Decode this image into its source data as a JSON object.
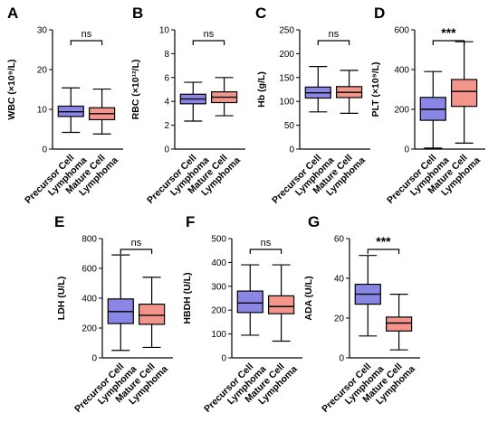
{
  "colors": {
    "precursor": "#8a86e6",
    "mature": "#f2958a",
    "stroke": "#000000"
  },
  "chart_data": [
    {
      "letter": "A",
      "type": "boxplot",
      "ylabel": "WBC (×10⁹/L)",
      "ylim": [
        0,
        30
      ],
      "yticks": [
        0,
        10,
        20,
        30
      ],
      "categories": [
        "Precursor Cell Lymphoma",
        "Mature Cell Lymphoma"
      ],
      "boxes": [
        {
          "min": 4.2,
          "q1": 8.2,
          "median": 9.4,
          "q3": 10.8,
          "max": 15.4
        },
        {
          "min": 3.8,
          "q1": 7.4,
          "median": 8.9,
          "q3": 10.4,
          "max": 15.1
        }
      ],
      "significance": "ns"
    },
    {
      "letter": "B",
      "type": "boxplot",
      "ylabel": "RBC (×10¹²/L)",
      "ylim": [
        0,
        10
      ],
      "yticks": [
        0,
        2,
        4,
        6,
        8,
        10
      ],
      "categories": [
        "Precursor Cell Lymphoma",
        "Mature Cell Lymphoma"
      ],
      "boxes": [
        {
          "min": 2.35,
          "q1": 3.8,
          "median": 4.2,
          "q3": 4.6,
          "max": 5.6
        },
        {
          "min": 2.8,
          "q1": 3.9,
          "median": 4.35,
          "q3": 4.8,
          "max": 6.0
        }
      ],
      "significance": "ns"
    },
    {
      "letter": "C",
      "type": "boxplot",
      "ylabel": "Hb (g/L)",
      "ylim": [
        0,
        250
      ],
      "yticks": [
        0,
        50,
        100,
        150,
        200,
        250
      ],
      "categories": [
        "Precursor Cell Lymphoma",
        "Mature Cell Lymphoma"
      ],
      "boxes": [
        {
          "min": 78,
          "q1": 107,
          "median": 118,
          "q3": 130,
          "max": 173
        },
        {
          "min": 75,
          "q1": 108,
          "median": 119,
          "q3": 131,
          "max": 165
        }
      ],
      "significance": "ns"
    },
    {
      "letter": "D",
      "type": "boxplot",
      "ylabel": "PLT (×10⁹/L)",
      "ylim": [
        0,
        600
      ],
      "yticks": [
        0,
        200,
        400,
        600
      ],
      "categories": [
        "Precursor Cell Lymphoma",
        "Mature Cell Lymphoma"
      ],
      "boxes": [
        {
          "min": 5,
          "q1": 145,
          "median": 200,
          "q3": 260,
          "max": 390
        },
        {
          "min": 30,
          "q1": 215,
          "median": 290,
          "q3": 350,
          "max": 540
        }
      ],
      "significance": "***"
    },
    {
      "letter": "E",
      "type": "boxplot",
      "ylabel": "LDH (U/L)",
      "ylim": [
        0,
        800
      ],
      "yticks": [
        0,
        200,
        400,
        600,
        800
      ],
      "categories": [
        "Precursor Cell Lymphoma",
        "Mature Cell Lymphoma"
      ],
      "boxes": [
        {
          "min": 50,
          "q1": 230,
          "median": 310,
          "q3": 395,
          "max": 690
        },
        {
          "min": 70,
          "q1": 225,
          "median": 285,
          "q3": 360,
          "max": 540
        }
      ],
      "significance": "ns"
    },
    {
      "letter": "F",
      "type": "boxplot",
      "ylabel": "HBDH (U/L)",
      "ylim": [
        0,
        500
      ],
      "yticks": [
        0,
        100,
        200,
        300,
        400,
        500
      ],
      "categories": [
        "Precursor Cell Lymphoma",
        "Mature Cell Lymphoma"
      ],
      "boxes": [
        {
          "min": 95,
          "q1": 190,
          "median": 230,
          "q3": 280,
          "max": 390
        },
        {
          "min": 70,
          "q1": 185,
          "median": 215,
          "q3": 260,
          "max": 390
        }
      ],
      "significance": "ns"
    },
    {
      "letter": "G",
      "type": "boxplot",
      "ylabel": "ADA (U/L)",
      "ylim": [
        0,
        60
      ],
      "yticks": [
        0,
        20,
        40,
        60
      ],
      "categories": [
        "Precursor Cell Lymphoma",
        "Mature Cell Lymphoma"
      ],
      "boxes": [
        {
          "min": 11,
          "q1": 27,
          "median": 32,
          "q3": 37,
          "max": 51.5
        },
        {
          "min": 4,
          "q1": 13.5,
          "median": 17.5,
          "q3": 20.5,
          "max": 32
        }
      ],
      "significance": "***"
    }
  ]
}
